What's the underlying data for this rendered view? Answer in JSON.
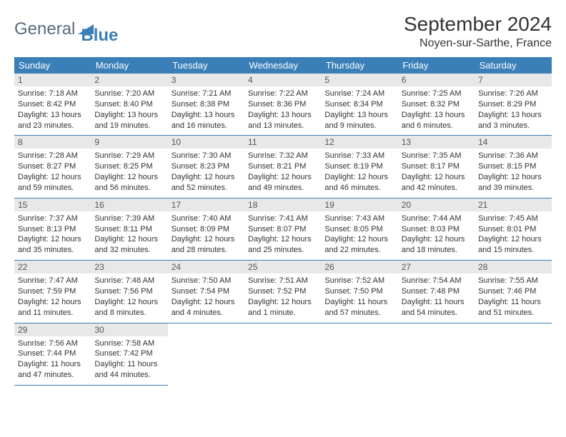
{
  "logo": {
    "text1": "General",
    "text2": "Blue"
  },
  "title": "September 2024",
  "location": "Noyen-sur-Sarthe, France",
  "colors": {
    "headerBg": "#3a7fb8",
    "headerText": "#ffffff",
    "dayBg": "#e8e8e8",
    "border": "#3a7fb8"
  },
  "weekdays": [
    "Sunday",
    "Monday",
    "Tuesday",
    "Wednesday",
    "Thursday",
    "Friday",
    "Saturday"
  ],
  "weeks": [
    [
      {
        "n": "1",
        "sr": "7:18 AM",
        "ss": "8:42 PM",
        "dl": "13 hours and 23 minutes."
      },
      {
        "n": "2",
        "sr": "7:20 AM",
        "ss": "8:40 PM",
        "dl": "13 hours and 19 minutes."
      },
      {
        "n": "3",
        "sr": "7:21 AM",
        "ss": "8:38 PM",
        "dl": "13 hours and 16 minutes."
      },
      {
        "n": "4",
        "sr": "7:22 AM",
        "ss": "8:36 PM",
        "dl": "13 hours and 13 minutes."
      },
      {
        "n": "5",
        "sr": "7:24 AM",
        "ss": "8:34 PM",
        "dl": "13 hours and 9 minutes."
      },
      {
        "n": "6",
        "sr": "7:25 AM",
        "ss": "8:32 PM",
        "dl": "13 hours and 6 minutes."
      },
      {
        "n": "7",
        "sr": "7:26 AM",
        "ss": "8:29 PM",
        "dl": "13 hours and 3 minutes."
      }
    ],
    [
      {
        "n": "8",
        "sr": "7:28 AM",
        "ss": "8:27 PM",
        "dl": "12 hours and 59 minutes."
      },
      {
        "n": "9",
        "sr": "7:29 AM",
        "ss": "8:25 PM",
        "dl": "12 hours and 56 minutes."
      },
      {
        "n": "10",
        "sr": "7:30 AM",
        "ss": "8:23 PM",
        "dl": "12 hours and 52 minutes."
      },
      {
        "n": "11",
        "sr": "7:32 AM",
        "ss": "8:21 PM",
        "dl": "12 hours and 49 minutes."
      },
      {
        "n": "12",
        "sr": "7:33 AM",
        "ss": "8:19 PM",
        "dl": "12 hours and 46 minutes."
      },
      {
        "n": "13",
        "sr": "7:35 AM",
        "ss": "8:17 PM",
        "dl": "12 hours and 42 minutes."
      },
      {
        "n": "14",
        "sr": "7:36 AM",
        "ss": "8:15 PM",
        "dl": "12 hours and 39 minutes."
      }
    ],
    [
      {
        "n": "15",
        "sr": "7:37 AM",
        "ss": "8:13 PM",
        "dl": "12 hours and 35 minutes."
      },
      {
        "n": "16",
        "sr": "7:39 AM",
        "ss": "8:11 PM",
        "dl": "12 hours and 32 minutes."
      },
      {
        "n": "17",
        "sr": "7:40 AM",
        "ss": "8:09 PM",
        "dl": "12 hours and 28 minutes."
      },
      {
        "n": "18",
        "sr": "7:41 AM",
        "ss": "8:07 PM",
        "dl": "12 hours and 25 minutes."
      },
      {
        "n": "19",
        "sr": "7:43 AM",
        "ss": "8:05 PM",
        "dl": "12 hours and 22 minutes."
      },
      {
        "n": "20",
        "sr": "7:44 AM",
        "ss": "8:03 PM",
        "dl": "12 hours and 18 minutes."
      },
      {
        "n": "21",
        "sr": "7:45 AM",
        "ss": "8:01 PM",
        "dl": "12 hours and 15 minutes."
      }
    ],
    [
      {
        "n": "22",
        "sr": "7:47 AM",
        "ss": "7:59 PM",
        "dl": "12 hours and 11 minutes."
      },
      {
        "n": "23",
        "sr": "7:48 AM",
        "ss": "7:56 PM",
        "dl": "12 hours and 8 minutes."
      },
      {
        "n": "24",
        "sr": "7:50 AM",
        "ss": "7:54 PM",
        "dl": "12 hours and 4 minutes."
      },
      {
        "n": "25",
        "sr": "7:51 AM",
        "ss": "7:52 PM",
        "dl": "12 hours and 1 minute."
      },
      {
        "n": "26",
        "sr": "7:52 AM",
        "ss": "7:50 PM",
        "dl": "11 hours and 57 minutes."
      },
      {
        "n": "27",
        "sr": "7:54 AM",
        "ss": "7:48 PM",
        "dl": "11 hours and 54 minutes."
      },
      {
        "n": "28",
        "sr": "7:55 AM",
        "ss": "7:46 PM",
        "dl": "11 hours and 51 minutes."
      }
    ],
    [
      {
        "n": "29",
        "sr": "7:56 AM",
        "ss": "7:44 PM",
        "dl": "11 hours and 47 minutes."
      },
      {
        "n": "30",
        "sr": "7:58 AM",
        "ss": "7:42 PM",
        "dl": "11 hours and 44 minutes."
      },
      null,
      null,
      null,
      null,
      null
    ]
  ],
  "labels": {
    "sunrise": "Sunrise: ",
    "sunset": "Sunset: ",
    "daylight": "Daylight: "
  }
}
